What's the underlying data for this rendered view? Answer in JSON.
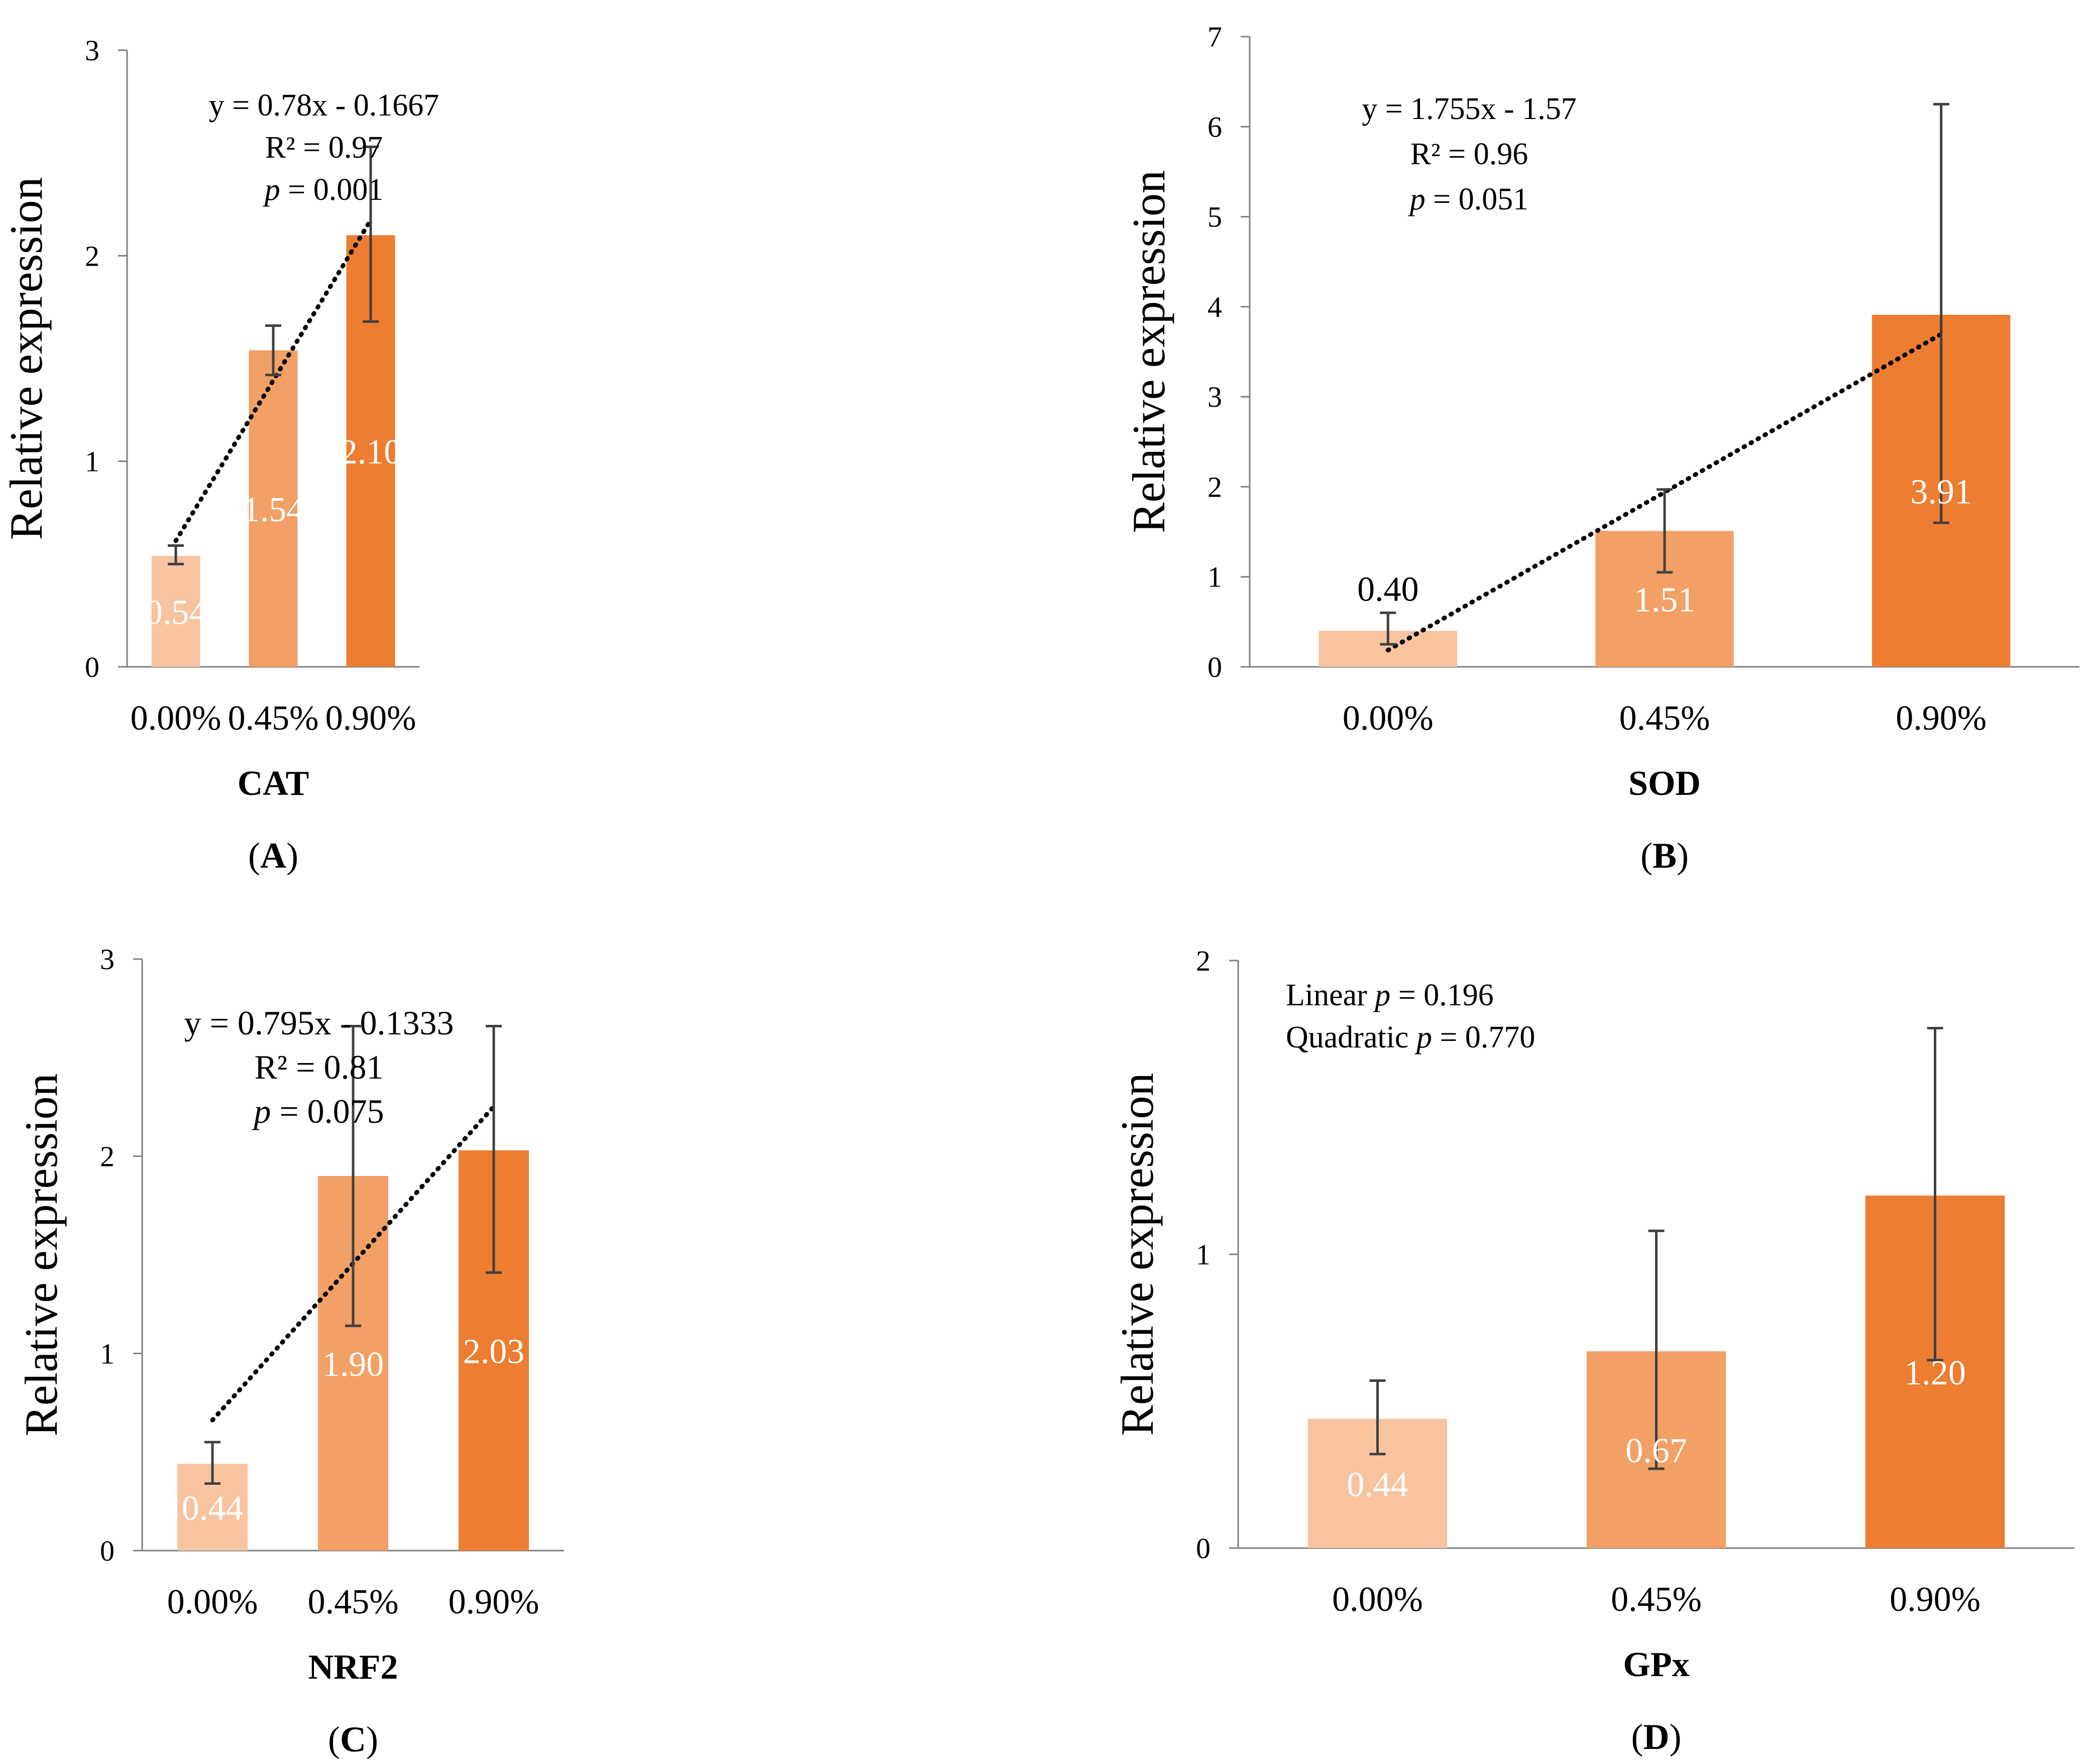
{
  "colors": {
    "bar_light": "#F8C4A0",
    "bar_medium": "#F2A065",
    "bar_dark": "#ED7D31",
    "axis": "#7f7f7f",
    "text": "#000000",
    "bar_label": "#ffffff",
    "trend": "#000000"
  },
  "chart_data": [
    {
      "panel": "A",
      "panel_label": "(A)",
      "type": "bar",
      "title": "",
      "xlabel": "CAT",
      "ylabel": "Relative expression",
      "categories": [
        "0.00%",
        "0.45%",
        "0.90%"
      ],
      "values": [
        0.54,
        1.54,
        2.1
      ],
      "data_labels": [
        "0.54",
        "1.54",
        "2.10"
      ],
      "error_bars": [
        [
          0.5,
          0.59
        ],
        [
          1.42,
          1.66
        ],
        [
          1.68,
          2.53
        ]
      ],
      "ylim": [
        0,
        3
      ],
      "yticks": [
        0,
        1,
        2,
        3
      ],
      "trendline": {
        "slope": 0.78,
        "intercept": -0.1667
      },
      "annotations": [
        {
          "parts": [
            {
              "text": "y = 0.78x - 0.1667",
              "italic": false
            }
          ]
        },
        {
          "parts": [
            {
              "text": "R² = 0.97",
              "italic": false
            }
          ]
        },
        {
          "parts": [
            {
              "text": "p",
              "italic": true
            },
            {
              "text": " = 0.001",
              "italic": false
            }
          ]
        }
      ]
    },
    {
      "panel": "B",
      "panel_label": "(B)",
      "type": "bar",
      "title": "",
      "xlabel": "SOD",
      "ylabel": "Relative expression",
      "categories": [
        "0.00%",
        "0.45%",
        "0.90%"
      ],
      "values": [
        0.4,
        1.51,
        3.91
      ],
      "data_labels": [
        "0.40",
        "1.51",
        "3.91"
      ],
      "error_bars": [
        [
          0.25,
          0.6
        ],
        [
          1.05,
          1.97
        ],
        [
          1.6,
          6.25
        ]
      ],
      "ylim": [
        0,
        7
      ],
      "yticks": [
        0,
        1,
        2,
        3,
        4,
        5,
        6,
        7
      ],
      "trendline": {
        "slope": 1.755,
        "intercept": -1.57
      },
      "annotations": [
        {
          "parts": [
            {
              "text": "y = 1.755x - 1.57",
              "italic": false
            }
          ]
        },
        {
          "parts": [
            {
              "text": "R² = 0.96",
              "italic": false
            }
          ]
        },
        {
          "parts": [
            {
              "text": "p",
              "italic": true
            },
            {
              "text": " = 0.051",
              "italic": false
            }
          ]
        }
      ]
    },
    {
      "panel": "C",
      "panel_label": "(C)",
      "type": "bar",
      "title": "",
      "xlabel": "NRF2",
      "ylabel": "Relative expression",
      "categories": [
        "0.00%",
        "0.45%",
        "0.90%"
      ],
      "values": [
        0.44,
        1.9,
        2.03
      ],
      "data_labels": [
        "0.44",
        "1.90",
        "2.03"
      ],
      "error_bars": [
        [
          0.34,
          0.55
        ],
        [
          1.14,
          2.66
        ],
        [
          1.41,
          2.66
        ]
      ],
      "ylim": [
        0,
        3
      ],
      "yticks": [
        0,
        1,
        2,
        3
      ],
      "trendline": {
        "slope": 0.795,
        "intercept": -0.1333
      },
      "annotations": [
        {
          "parts": [
            {
              "text": "y = 0.795x - 0.1333",
              "italic": false
            }
          ]
        },
        {
          "parts": [
            {
              "text": "R² = 0.81",
              "italic": false
            }
          ]
        },
        {
          "parts": [
            {
              "text": "p",
              "italic": true
            },
            {
              "text": " = 0.075",
              "italic": false
            }
          ]
        }
      ]
    },
    {
      "panel": "D",
      "panel_label": "(D)",
      "type": "bar",
      "title": "",
      "xlabel": "GPx",
      "ylabel": "Relative expression",
      "categories": [
        "0.00%",
        "0.45%",
        "0.90%"
      ],
      "values": [
        0.44,
        0.67,
        1.2
      ],
      "data_labels": [
        "0.44",
        "0.67",
        "1.20"
      ],
      "error_bars": [
        [
          0.32,
          0.57
        ],
        [
          0.27,
          1.08
        ],
        [
          0.64,
          1.77
        ]
      ],
      "ylim": [
        0,
        2
      ],
      "yticks": [
        0,
        1,
        2
      ],
      "trendline": null,
      "annotations": [
        {
          "parts": [
            {
              "text": "Linear ",
              "italic": false
            },
            {
              "text": "p",
              "italic": true
            },
            {
              "text": " = 0.196",
              "italic": false
            }
          ]
        },
        {
          "parts": [
            {
              "text": "Quadratic ",
              "italic": false
            },
            {
              "text": "p",
              "italic": true
            },
            {
              "text": " = 0.770",
              "italic": false
            }
          ]
        }
      ]
    }
  ]
}
